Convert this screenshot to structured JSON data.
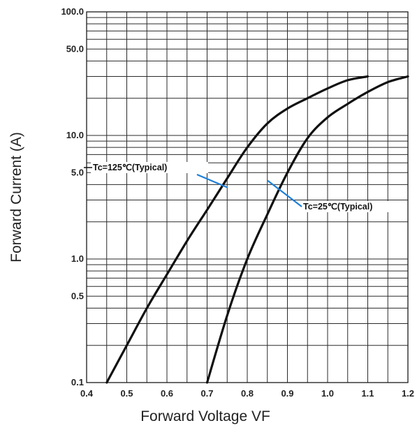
{
  "chart_data": {
    "type": "line",
    "title": "",
    "xlabel": "Forward Voltage VF",
    "ylabel": "Forward Current (A)",
    "x_scale": "linear",
    "y_scale": "log",
    "xlim": [
      0.4,
      1.2
    ],
    "ylim": [
      0.1,
      100
    ],
    "grid": true,
    "x_ticks": [
      "0.4",
      "0.5",
      "0.6",
      "0.7",
      "0.8",
      "0.9",
      "1.0",
      "1.1",
      "1.2"
    ],
    "y_ticks": [
      {
        "value": 100,
        "label": "100.0"
      },
      {
        "value": 50,
        "label": "50.0"
      },
      {
        "value": 10,
        "label": "10.0"
      },
      {
        "value": 5,
        "label": "5.0"
      },
      {
        "value": 1,
        "label": "1.0"
      },
      {
        "value": 0.5,
        "label": "0.5"
      },
      {
        "value": 0.1,
        "label": "0.1"
      }
    ],
    "series": [
      {
        "name": "Tc=125℃(Typical)",
        "x": [
          0.45,
          0.5,
          0.55,
          0.6,
          0.65,
          0.7,
          0.75,
          0.8,
          0.85,
          0.9,
          0.95,
          1.0,
          1.05,
          1.1
        ],
        "y": [
          0.1,
          0.2,
          0.4,
          0.75,
          1.4,
          2.5,
          4.5,
          8.0,
          12.5,
          16.5,
          20.0,
          24.0,
          28.0,
          30.0
        ]
      },
      {
        "name": "Tc=25℃(Typical)",
        "x": [
          0.7,
          0.75,
          0.8,
          0.85,
          0.9,
          0.95,
          1.0,
          1.05,
          1.1,
          1.15,
          1.2
        ],
        "y": [
          0.1,
          0.35,
          1.0,
          2.3,
          5.0,
          9.5,
          14.0,
          18.0,
          22.5,
          27.0,
          30.0
        ]
      }
    ],
    "annotations": [
      {
        "text": "Tc=125℃(Typical)",
        "x": 0.75,
        "y": 3.8
      },
      {
        "text": "Tc=25℃(Typical)",
        "x": 0.875,
        "y": 4.2
      }
    ]
  }
}
